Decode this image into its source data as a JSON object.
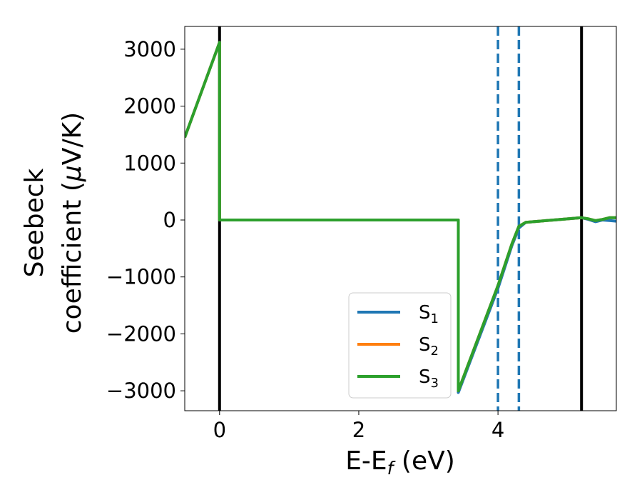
{
  "chart_data": {
    "type": "line",
    "xlabel": "E-E",
    "xlabel_sub": "f",
    "xlabel_unit": " (eV)",
    "ylabel_line1": "Seebeck",
    "ylabel_line2": "coefficient  (",
    "ylabel_mu": "μ",
    "ylabel_unit": "V/K)",
    "xlim": [
      -0.5,
      5.7
    ],
    "ylim": [
      -3350,
      3400
    ],
    "x_ticks": [
      0,
      2,
      4
    ],
    "x_tick_labels": [
      "0",
      "2",
      "4"
    ],
    "y_ticks": [
      3000,
      2000,
      1000,
      0,
      -1000,
      -2000,
      -3000
    ],
    "y_tick_labels": [
      "3000",
      "2000",
      "1000",
      "0",
      "−1000",
      "−2000",
      "−3000"
    ],
    "grid": false,
    "legend_position": "lower-right",
    "series": [
      {
        "name": "S",
        "sub": "1",
        "color": "#1f77b4",
        "x": [
          -0.5,
          0.0,
          0.0,
          3.43,
          3.43,
          4.0,
          4.2,
          4.3,
          4.4,
          4.6,
          4.8,
          5.0,
          5.2,
          5.3,
          5.4,
          5.5,
          5.6,
          5.7
        ],
        "y": [
          1450,
          3120,
          0,
          0,
          -3030,
          -1200,
          -450,
          -140,
          -40,
          -20,
          0,
          20,
          40,
          10,
          -30,
          0,
          -10,
          -20
        ]
      },
      {
        "name": "S",
        "sub": "2",
        "color": "#ff7f0e",
        "x": [
          -0.5,
          0.0,
          0.0,
          3.43,
          3.43,
          4.0,
          4.2,
          4.3,
          4.4,
          4.6,
          4.8,
          5.0,
          5.2,
          5.3,
          5.4,
          5.5,
          5.6,
          5.7
        ],
        "y": [
          1450,
          3120,
          0,
          0,
          -3000,
          -1150,
          -420,
          -110,
          -40,
          -20,
          0,
          20,
          40,
          20,
          -10,
          10,
          40,
          40
        ]
      },
      {
        "name": "S",
        "sub": "3",
        "color": "#2ca02c",
        "x": [
          -0.5,
          0.0,
          0.0,
          3.43,
          3.43,
          4.0,
          4.2,
          4.3,
          4.4,
          4.6,
          4.8,
          5.0,
          5.2,
          5.3,
          5.4,
          5.5,
          5.6,
          5.7
        ],
        "y": [
          1450,
          3120,
          0,
          0,
          -3000,
          -1150,
          -420,
          -110,
          -40,
          -20,
          0,
          20,
          40,
          20,
          -10,
          10,
          40,
          40
        ]
      }
    ],
    "vlines": [
      {
        "x": 0.0,
        "color": "#000000",
        "style": "solid"
      },
      {
        "x": 5.2,
        "color": "#000000",
        "style": "solid"
      },
      {
        "x": 4.0,
        "color": "#1f77b4",
        "style": "dashed"
      },
      {
        "x": 4.3,
        "color": "#1f77b4",
        "style": "dashed"
      }
    ]
  }
}
